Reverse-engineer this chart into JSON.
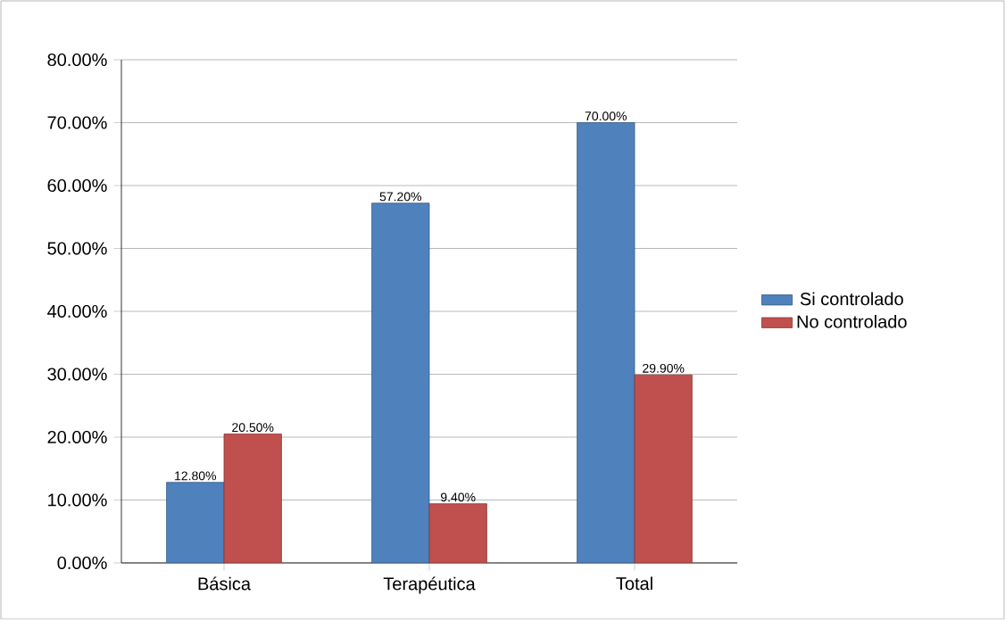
{
  "chart_data": {
    "type": "bar",
    "categories": [
      "Básica",
      "Terapéutica",
      "Total"
    ],
    "series": [
      {
        "name": "Si controlado",
        "color": "#4f81bd",
        "values": [
          12.8,
          57.2,
          70.0
        ],
        "value_labels": [
          "12.80%",
          "57.20%",
          "70.00%"
        ]
      },
      {
        "name": "No controlado",
        "color": "#c0504d",
        "values": [
          20.5,
          9.4,
          29.9
        ],
        "value_labels": [
          "20.50%",
          "9.40%",
          "29.90%"
        ]
      }
    ],
    "ylim": [
      0,
      80
    ],
    "yticks": [
      {
        "value": 0,
        "label": "0.00%"
      },
      {
        "value": 10,
        "label": "10.00%"
      },
      {
        "value": 20,
        "label": "20.00%"
      },
      {
        "value": 30,
        "label": "30.00%"
      },
      {
        "value": 40,
        "label": "40.00%"
      },
      {
        "value": 50,
        "label": "50.00%"
      },
      {
        "value": 60,
        "label": "60.00%"
      },
      {
        "value": 70,
        "label": "70.00%"
      },
      {
        "value": 80,
        "label": "80.00%"
      }
    ],
    "grid": "y",
    "legend": "right"
  }
}
